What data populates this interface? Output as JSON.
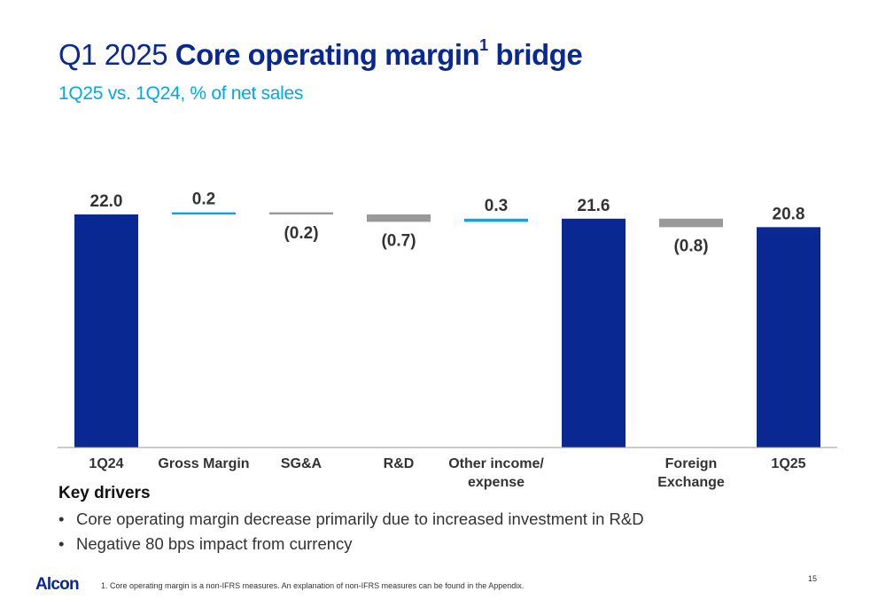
{
  "header": {
    "title_prefix": "Q1 2025",
    "title_bold": "Core operating margin",
    "title_sup": "1",
    "title_suffix": "bridge",
    "subtitle": "1Q25 vs. 1Q24, % of net sales"
  },
  "chart_data": {
    "type": "bar",
    "subtype": "waterfall",
    "categories": [
      "1Q24",
      "Gross Margin",
      "SG&A",
      "R&D",
      "Other income/\nexpense",
      "",
      "Foreign\nExchange",
      "1Q25"
    ],
    "values": [
      22.0,
      0.2,
      -0.2,
      -0.7,
      0.3,
      21.6,
      -0.8,
      20.8
    ],
    "kinds": [
      "total",
      "increase",
      "decrease",
      "decrease",
      "increase",
      "total",
      "decrease",
      "total"
    ],
    "labels": [
      "22.0",
      "0.2",
      "(0.2)",
      "(0.7)",
      "0.3",
      "21.6",
      "(0.8)",
      "20.8"
    ],
    "ylim": [
      0,
      22.5
    ],
    "colors": {
      "total": "#0a2892",
      "increase": "#00a8ec",
      "decrease": "#999999"
    }
  },
  "drivers": {
    "title": "Key drivers",
    "items": [
      "Core operating margin decrease primarily due to increased investment in R&D",
      "Negative 80 bps impact from currency"
    ]
  },
  "footer": {
    "logo": "Alcon",
    "footnote": "1.   Core operating margin is a non-IFRS measures.  An explanation of non-IFRS measures can be found in the Appendix.",
    "page_number": "15"
  }
}
